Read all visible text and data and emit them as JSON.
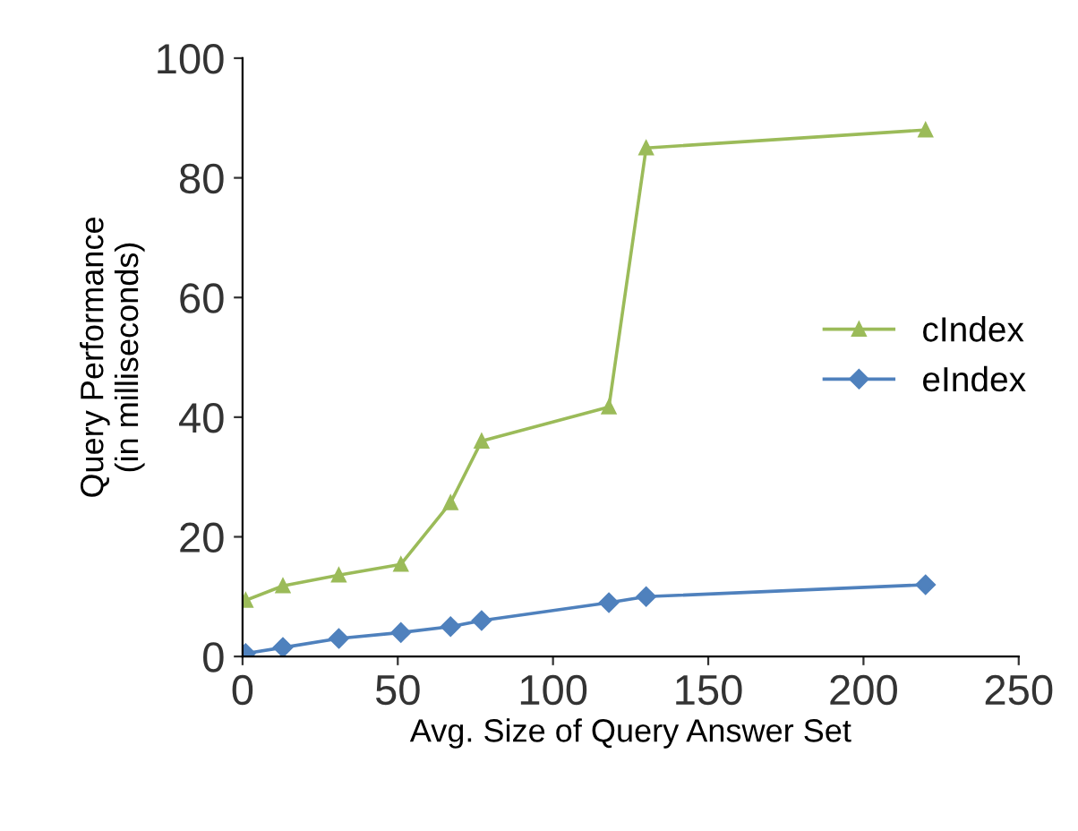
{
  "chart_data": {
    "type": "line",
    "xlabel": "Avg. Size of Query Answer Set",
    "ylabel": "Query Performance\n(in milliseconds)",
    "xlim": [
      0,
      250
    ],
    "xticks": [
      0,
      50,
      100,
      150,
      200,
      250
    ],
    "ylim": [
      0,
      100
    ],
    "yticks": [
      0,
      20,
      40,
      60,
      80,
      100
    ],
    "grid": false,
    "legend": "right",
    "series": [
      {
        "name": "cIndex",
        "color": "#9bbb59",
        "marker": "triangle",
        "x": [
          1,
          13,
          31,
          51,
          67,
          77,
          118,
          130,
          220
        ],
        "values": [
          9.4,
          11.8,
          13.6,
          15.4,
          25.7,
          36,
          41.7,
          85,
          88
        ]
      },
      {
        "name": "eIndex",
        "color": "#4f81bd",
        "marker": "diamond",
        "x": [
          1,
          13,
          31,
          51,
          67,
          77,
          118,
          130,
          220
        ],
        "values": [
          0.5,
          1.5,
          3,
          4,
          5,
          6,
          9,
          10,
          12
        ]
      }
    ]
  }
}
